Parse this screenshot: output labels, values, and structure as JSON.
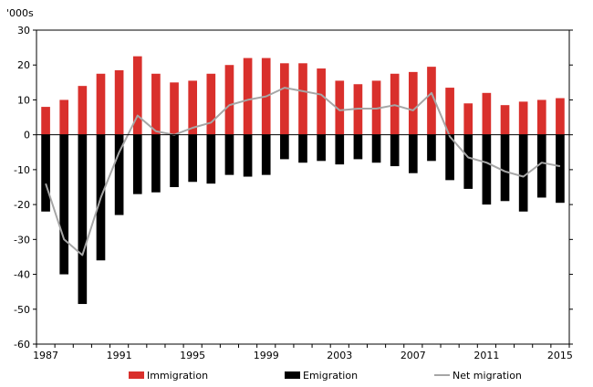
{
  "chart_data": {
    "type": "bar",
    "unit_label": "'000s",
    "x_tick_labels": [
      "1987",
      "1991",
      "1995",
      "1999",
      "2003",
      "2007",
      "2011",
      "2015"
    ],
    "years": [
      1987,
      1988,
      1989,
      1990,
      1991,
      1992,
      1993,
      1994,
      1995,
      1996,
      1997,
      1998,
      1999,
      2000,
      2001,
      2002,
      2003,
      2004,
      2005,
      2006,
      2007,
      2008,
      2009,
      2010,
      2011,
      2012,
      2013,
      2014,
      2015
    ],
    "ylim": [
      -60,
      30
    ],
    "y_ticks": [
      -60,
      -50,
      -40,
      -30,
      -20,
      -10,
      0,
      10,
      20,
      30
    ],
    "series": [
      {
        "name": "Immigration",
        "kind": "bar",
        "color": "#d9302c",
        "values": [
          8,
          10,
          14,
          17.5,
          18.5,
          22.5,
          17.5,
          15,
          15.5,
          17.5,
          20,
          22,
          22,
          20.5,
          20.5,
          19,
          15.5,
          14.5,
          15.5,
          17.5,
          18,
          19.5,
          13.5,
          9,
          12,
          8.5,
          9.5,
          10,
          10.5
        ]
      },
      {
        "name": "Emigration",
        "kind": "bar",
        "color": "#000000",
        "values": [
          -22,
          -40,
          -48.5,
          -36,
          -23,
          -17,
          -16.5,
          -15,
          -13.5,
          -14,
          -11.5,
          -12,
          -11.5,
          -7,
          -8,
          -7.5,
          -8.5,
          -7,
          -8,
          -9,
          -11,
          -7.5,
          -13,
          -15.5,
          -20,
          -19,
          -22,
          -18,
          -19.5
        ]
      },
      {
        "name": "Net migration",
        "kind": "line",
        "color": "#a6a6a6",
        "values": [
          -14,
          -30,
          -34.5,
          -18,
          -5,
          5.5,
          1,
          0,
          2,
          3.5,
          8.5,
          10,
          11,
          13.5,
          12.5,
          11.5,
          7,
          7.5,
          7.5,
          8.5,
          7,
          12,
          -0.5,
          -6.5,
          -8,
          -10.5,
          -12,
          -8,
          -9
        ]
      }
    ],
    "grid": false,
    "legend_position": "bottom"
  }
}
